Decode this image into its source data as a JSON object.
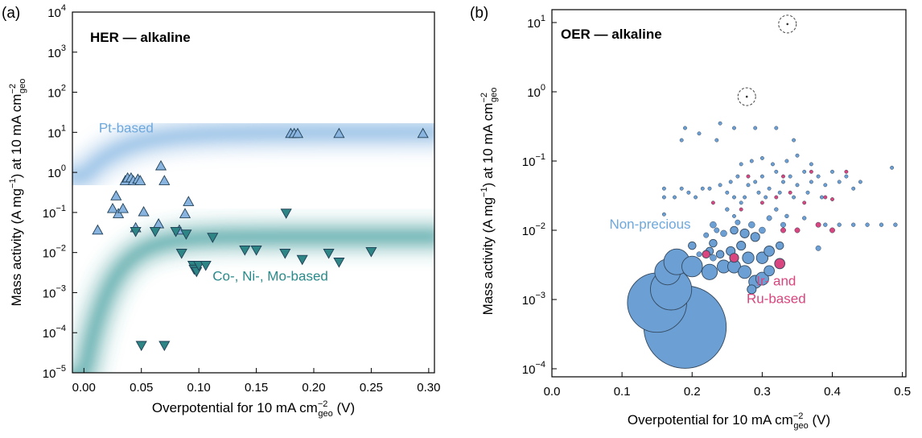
{
  "chart_data": [
    {
      "panel": "(a)",
      "type": "scatter",
      "title": "HER — alkaline",
      "xlabel": {
        "prefix": "Overpotential for 10 mA cm",
        "sup": "−2",
        "sub": "geo",
        "suffix": " (V)"
      },
      "ylabel": {
        "prefix": "Mass activity (A mg",
        "sup1": "−1",
        "mid": ") at 10 mA cm",
        "sup2": "−2",
        "sub": "geo"
      },
      "xlim": [
        -0.01,
        0.305
      ],
      "ylim": [
        1e-05,
        10000
      ],
      "yscale": "log",
      "xticks": [
        "0.00",
        "0.05",
        "0.10",
        "0.15",
        "0.20",
        "0.25",
        "0.30"
      ],
      "xtick_values": [
        0,
        0.05,
        0.1,
        0.15,
        0.2,
        0.25,
        0.3
      ],
      "yticks": [
        {
          "base": "10",
          "exp": "−5",
          "value": 1e-05
        },
        {
          "base": "10",
          "exp": "−4",
          "value": 0.0001
        },
        {
          "base": "10",
          "exp": "−3",
          "value": 0.001
        },
        {
          "base": "10",
          "exp": "−2",
          "value": 0.01
        },
        {
          "base": "10",
          "exp": "−1",
          "value": 0.1
        },
        {
          "base": "10",
          "exp": "0",
          "value": 1
        },
        {
          "base": "10",
          "exp": "1",
          "value": 10
        },
        {
          "base": "10",
          "exp": "2",
          "value": 100
        },
        {
          "base": "10",
          "exp": "3",
          "value": 1000
        },
        {
          "base": "10",
          "exp": "4",
          "value": 10000
        }
      ],
      "bands": [
        {
          "name": "Pt-based",
          "color": "#6ea8dc",
          "y_low": 0.8,
          "y_high": 10,
          "k": 30
        },
        {
          "name": "Co-, Ni-, Mo-based",
          "color": "#2a8f8f",
          "y_low": 8e-06,
          "y_high": 0.025,
          "k": 45
        }
      ],
      "series": [
        {
          "name": "Pt-based",
          "marker": "triangle-up",
          "color": "#8ab4e0",
          "label_at": [
            0.013,
            10
          ],
          "label_color": "#6ea8dc",
          "points": [
            [
              0.012,
              0.035
            ],
            [
              0.025,
              0.12
            ],
            [
              0.028,
              0.25
            ],
            [
              0.03,
              0.09
            ],
            [
              0.034,
              0.12
            ],
            [
              0.036,
              0.6
            ],
            [
              0.038,
              0.7
            ],
            [
              0.041,
              0.7
            ],
            [
              0.043,
              0.6
            ],
            [
              0.045,
              0.04
            ],
            [
              0.047,
              0.65
            ],
            [
              0.049,
              0.6
            ],
            [
              0.052,
              0.1
            ],
            [
              0.065,
              0.05
            ],
            [
              0.067,
              1.4
            ],
            [
              0.07,
              0.6
            ],
            [
              0.083,
              0.035
            ],
            [
              0.088,
              0.09
            ],
            [
              0.091,
              0.18
            ],
            [
              0.18,
              9
            ],
            [
              0.183,
              9
            ],
            [
              0.186,
              9
            ],
            [
              0.222,
              9
            ],
            [
              0.295,
              9
            ]
          ]
        },
        {
          "name": "Co-, Ni-, Mo-based",
          "marker": "triangle-down",
          "color": "#2e8585",
          "label_at": [
            0.112,
            0.002
          ],
          "label_color": "#2a8a8a",
          "points": [
            [
              0.045,
              0.035
            ],
            [
              0.05,
              5e-05
            ],
            [
              0.062,
              0.035
            ],
            [
              0.07,
              5e-05
            ],
            [
              0.08,
              0.035
            ],
            [
              0.085,
              0.01
            ],
            [
              0.089,
              0.03
            ],
            [
              0.095,
              0.005
            ],
            [
              0.096,
              0.004
            ],
            [
              0.098,
              0.0035
            ],
            [
              0.1,
              0.005
            ],
            [
              0.106,
              0.005
            ],
            [
              0.112,
              0.025
            ],
            [
              0.14,
              0.012
            ],
            [
              0.15,
              0.012
            ],
            [
              0.175,
              0.01
            ],
            [
              0.176,
              0.1
            ],
            [
              0.19,
              0.007
            ],
            [
              0.213,
              0.01
            ],
            [
              0.222,
              0.006
            ],
            [
              0.25,
              0.011
            ]
          ]
        }
      ],
      "grid": false,
      "legend": "none"
    },
    {
      "panel": "(b)",
      "type": "scatter",
      "title": "OER — alkaline",
      "xlabel": {
        "prefix": "Overpotential for 10 mA cm",
        "sup": "−2",
        "sub": "geo",
        "suffix": " (V)"
      },
      "ylabel": {
        "prefix": "Mass activity (A mg",
        "sup1": "−1",
        "mid": ") at 10 mA cm",
        "sup2": "−2",
        "sub": "geo"
      },
      "xlim": [
        0.0,
        0.505
      ],
      "ylim": [
        0.0001,
        10
      ],
      "yscale": "log",
      "xticks": [
        "0.0",
        "0.1",
        "0.2",
        "0.3",
        "0.4",
        "0.5"
      ],
      "xtick_values": [
        0,
        0.1,
        0.2,
        0.3,
        0.4,
        0.5
      ],
      "yticks": [
        {
          "base": "10",
          "exp": "−4",
          "value": 0.0001
        },
        {
          "base": "10",
          "exp": "−3",
          "value": 0.001
        },
        {
          "base": "10",
          "exp": "−2",
          "value": 0.01
        },
        {
          "base": "10",
          "exp": "−1",
          "value": 0.1
        },
        {
          "base": "10",
          "exp": "0",
          "value": 1
        },
        {
          "base": "10",
          "exp": "1",
          "value": 10
        }
      ],
      "outliers": [
        {
          "x": 0.336,
          "y": 9.5,
          "note": "dashed circle"
        },
        {
          "x": 0.278,
          "y": 0.85,
          "note": "dashed circle"
        }
      ],
      "series": [
        {
          "name": "Non-precious",
          "color": "#6c9fd4",
          "label_at": [
            0.082,
            0.0105
          ],
          "label_color": "#6ea8dc",
          "points": [
            [
              0.19,
              0.0004,
              3.2
            ],
            [
              0.15,
              0.0009,
              2.3
            ],
            [
              0.17,
              0.0014,
              1.6
            ],
            [
              0.165,
              0.0025,
              1.0
            ],
            [
              0.178,
              0.0035,
              1.0
            ],
            [
              0.2,
              0.003,
              0.8
            ],
            [
              0.225,
              0.0025,
              0.6
            ],
            [
              0.245,
              0.003,
              0.5
            ],
            [
              0.26,
              0.003,
              0.5
            ],
            [
              0.275,
              0.0025,
              0.5
            ],
            [
              0.29,
              0.0018,
              0.5
            ],
            [
              0.3,
              0.002,
              0.5
            ],
            [
              0.28,
              0.004,
              0.45
            ],
            [
              0.3,
              0.004,
              0.45
            ],
            [
              0.31,
              0.005,
              0.4
            ],
            [
              0.325,
              0.006,
              0.3
            ],
            [
              0.27,
              0.006,
              0.35
            ],
            [
              0.255,
              0.005,
              0.35
            ],
            [
              0.24,
              0.0045,
              0.3
            ],
            [
              0.225,
              0.005,
              0.3
            ],
            [
              0.29,
              0.008,
              0.35
            ],
            [
              0.275,
              0.009,
              0.35
            ],
            [
              0.26,
              0.01,
              0.3
            ],
            [
              0.245,
              0.009,
              0.25
            ],
            [
              0.23,
              0.012,
              0.25
            ],
            [
              0.285,
              0.012,
              0.25
            ],
            [
              0.3,
              0.01,
              0.25
            ],
            [
              0.31,
              0.015,
              0.2
            ],
            [
              0.265,
              0.013,
              0.2
            ],
            [
              0.235,
              0.01,
              0.2
            ],
            [
              0.22,
              0.0085,
              0.2
            ],
            [
              0.33,
              0.012,
              0.2
            ],
            [
              0.335,
              0.016,
              0.15
            ],
            [
              0.32,
              0.02,
              0.15
            ],
            [
              0.25,
              0.02,
              0.15
            ],
            [
              0.27,
              0.025,
              0.12
            ],
            [
              0.36,
              0.015,
              0.15
            ],
            [
              0.38,
              0.0055,
              0.2
            ],
            [
              0.39,
              0.012,
              0.15
            ],
            [
              0.41,
              0.012,
              0.15
            ],
            [
              0.43,
              0.012,
              0.15
            ],
            [
              0.45,
              0.012,
              0.15
            ],
            [
              0.47,
              0.012,
              0.15
            ],
            [
              0.49,
              0.012,
              0.15
            ],
            [
              0.23,
              0.004,
              0.25
            ],
            [
              0.21,
              0.0045,
              0.2
            ],
            [
              0.215,
              0.04,
              0.08
            ],
            [
              0.225,
              0.04,
              0.08
            ],
            [
              0.24,
              0.045,
              0.08
            ],
            [
              0.255,
              0.05,
              0.08
            ],
            [
              0.265,
              0.06,
              0.08
            ],
            [
              0.28,
              0.045,
              0.08
            ],
            [
              0.29,
              0.05,
              0.08
            ],
            [
              0.3,
              0.06,
              0.08
            ],
            [
              0.31,
              0.04,
              0.08
            ],
            [
              0.32,
              0.07,
              0.08
            ],
            [
              0.33,
              0.05,
              0.08
            ],
            [
              0.34,
              0.06,
              0.08
            ],
            [
              0.35,
              0.045,
              0.08
            ],
            [
              0.36,
              0.07,
              0.08
            ],
            [
              0.37,
              0.05,
              0.08
            ],
            [
              0.38,
              0.06,
              0.08
            ],
            [
              0.39,
              0.045,
              0.08
            ],
            [
              0.4,
              0.07,
              0.08
            ],
            [
              0.41,
              0.05,
              0.08
            ],
            [
              0.42,
              0.06,
              0.08
            ],
            [
              0.43,
              0.04,
              0.08
            ],
            [
              0.44,
              0.05,
              0.08
            ],
            [
              0.16,
              0.04,
              0.08
            ],
            [
              0.175,
              0.03,
              0.08
            ],
            [
              0.185,
              0.04,
              0.08
            ],
            [
              0.195,
              0.035,
              0.08
            ],
            [
              0.205,
              0.03,
              0.08
            ],
            [
              0.27,
              0.09,
              0.06
            ],
            [
              0.285,
              0.1,
              0.06
            ],
            [
              0.3,
              0.11,
              0.06
            ],
            [
              0.315,
              0.09,
              0.06
            ],
            [
              0.335,
              0.1,
              0.06
            ],
            [
              0.35,
              0.12,
              0.06
            ],
            [
              0.37,
              0.09,
              0.06
            ],
            [
              0.25,
              0.035,
              0.08
            ],
            [
              0.26,
              0.03,
              0.08
            ],
            [
              0.275,
              0.03,
              0.08
            ],
            [
              0.295,
              0.035,
              0.08
            ],
            [
              0.305,
              0.03,
              0.08
            ],
            [
              0.325,
              0.035,
              0.08
            ],
            [
              0.345,
              0.03,
              0.08
            ],
            [
              0.365,
              0.035,
              0.08
            ],
            [
              0.385,
              0.03,
              0.08
            ],
            [
              0.16,
              0.03,
              0.08
            ],
            [
              0.19,
              0.3,
              0.04
            ],
            [
              0.21,
              0.25,
              0.04
            ],
            [
              0.24,
              0.35,
              0.04
            ],
            [
              0.26,
              0.3,
              0.04
            ],
            [
              0.29,
              0.3,
              0.04
            ],
            [
              0.32,
              0.3,
              0.04
            ],
            [
              0.185,
              0.2,
              0.04
            ],
            [
              0.235,
              0.2,
              0.04
            ],
            [
              0.345,
              0.2,
              0.04
            ],
            [
              0.485,
              0.08,
              0.05
            ],
            [
              0.16,
              0.017,
              0.08
            ],
            [
              0.26,
              0.016,
              0.12
            ],
            [
              0.23,
              0.0065,
              0.3
            ],
            [
              0.2,
              0.006,
              0.3
            ],
            [
              0.31,
              0.0026,
              0.4
            ],
            [
              0.285,
              0.0014,
              0.35
            ]
          ]
        },
        {
          "name": "Ir- and Ru-based",
          "label_lines": [
            "Ir- and",
            "Ru-based"
          ],
          "color": "#d9457e",
          "label_at": [
            0.32,
            0.0016
          ],
          "label_color": "#d9457e",
          "points": [
            [
              0.22,
              0.0045,
              0.3
            ],
            [
              0.26,
              0.004,
              0.35
            ],
            [
              0.325,
              0.0033,
              0.4
            ],
            [
              0.33,
              0.01,
              0.2
            ],
            [
              0.35,
              0.01,
              0.2
            ],
            [
              0.38,
              0.012,
              0.2
            ],
            [
              0.4,
              0.01,
              0.2
            ],
            [
              0.23,
              0.025,
              0.07
            ],
            [
              0.27,
              0.02,
              0.07
            ],
            [
              0.3,
              0.025,
              0.07
            ],
            [
              0.32,
              0.03,
              0.07
            ],
            [
              0.34,
              0.035,
              0.07
            ],
            [
              0.36,
              0.025,
              0.07
            ],
            [
              0.39,
              0.03,
              0.07
            ],
            [
              0.28,
              0.06,
              0.07
            ],
            [
              0.33,
              0.06,
              0.07
            ],
            [
              0.37,
              0.07,
              0.07
            ],
            [
              0.4,
              0.028,
              0.07
            ],
            [
              0.42,
              0.07,
              0.07
            ]
          ]
        }
      ],
      "grid": false,
      "legend": "none"
    }
  ]
}
